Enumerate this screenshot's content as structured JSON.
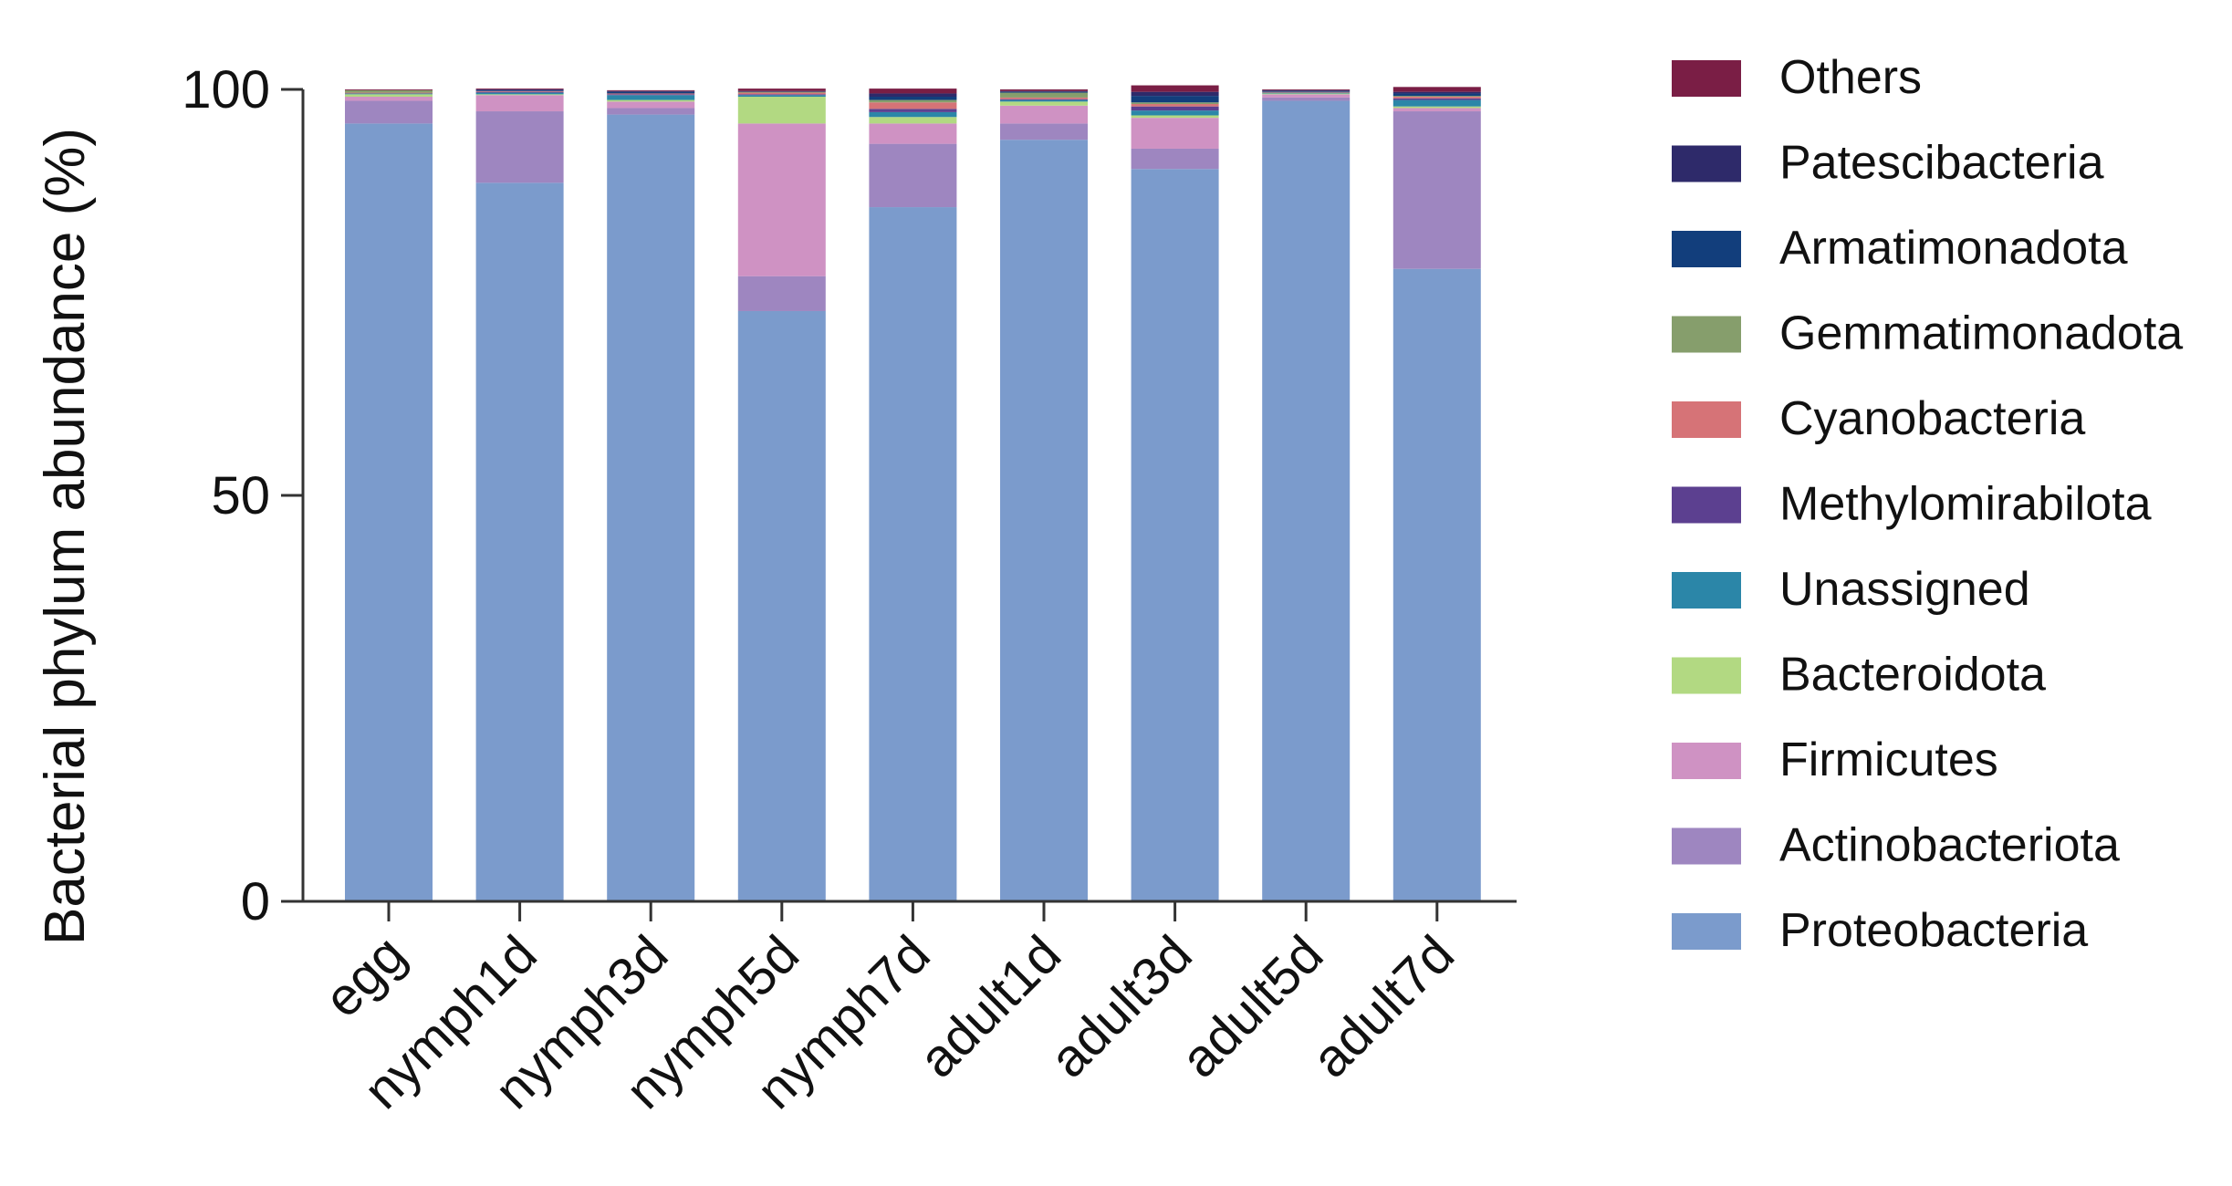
{
  "chart_data": {
    "type": "bar",
    "stacked": true,
    "ylabel": "Bacterial phylum abundance (%)",
    "xlabel": "",
    "ylim": [
      0,
      100
    ],
    "yticks": [
      0,
      50,
      100
    ],
    "categories": [
      "egg",
      "nymph1d",
      "nymph3d",
      "nymph5d",
      "nymph7d",
      "adult1d",
      "adult3d",
      "adult5d",
      "adult7d"
    ],
    "legend_position": "right",
    "series": [
      {
        "name": "Proteobacteria",
        "color": "#7B9BCC",
        "values": [
          95.8,
          88.5,
          96.9,
          72.7,
          85.5,
          93.8,
          90.2,
          98.6,
          77.9
        ]
      },
      {
        "name": "Actinobacteriota",
        "color": "#9E86C0",
        "values": [
          2.8,
          8.8,
          0.8,
          4.3,
          7.8,
          2.0,
          2.5,
          0.4,
          19.4
        ]
      },
      {
        "name": "Firmicutes",
        "color": "#CF92C3",
        "values": [
          0.5,
          2.0,
          0.8,
          18.8,
          2.5,
          2.2,
          3.8,
          0.4,
          0.4
        ]
      },
      {
        "name": "Bacteroidota",
        "color": "#B2D982",
        "values": [
          0.3,
          0.1,
          0.2,
          3.3,
          0.8,
          0.5,
          0.3,
          0.1,
          0.2
        ]
      },
      {
        "name": "Unassigned",
        "color": "#2B86A8",
        "values": [
          0.1,
          0.2,
          0.6,
          0.2,
          0.6,
          0.2,
          0.6,
          0.1,
          0.8
        ]
      },
      {
        "name": "Methylomirabilota",
        "color": "#5C4090",
        "values": [
          0.0,
          0.1,
          0.1,
          0.1,
          0.4,
          0.1,
          0.5,
          0.0,
          0.2
        ]
      },
      {
        "name": "Cyanobacteria",
        "color": "#D67377",
        "values": [
          0.1,
          0.1,
          0.1,
          0.2,
          0.8,
          0.2,
          0.3,
          0.1,
          0.2
        ]
      },
      {
        "name": "Gemmatimonadota",
        "color": "#869E6C",
        "values": [
          0.3,
          0.0,
          0.0,
          0.1,
          0.3,
          0.6,
          0.2,
          0.0,
          0.1
        ]
      },
      {
        "name": "Armatimonadota",
        "color": "#123E7C",
        "values": [
          0.0,
          0.1,
          0.2,
          0.0,
          0.4,
          0.1,
          0.8,
          0.1,
          0.3
        ]
      },
      {
        "name": "Patescibacteria",
        "color": "#2E2A6A",
        "values": [
          0.0,
          0.1,
          0.1,
          0.1,
          0.4,
          0.1,
          0.5,
          0.1,
          0.2
        ]
      },
      {
        "name": "Others",
        "color": "#7A1E45",
        "values": [
          0.1,
          0.1,
          0.1,
          0.3,
          0.6,
          0.2,
          0.8,
          0.1,
          0.6
        ]
      }
    ]
  }
}
